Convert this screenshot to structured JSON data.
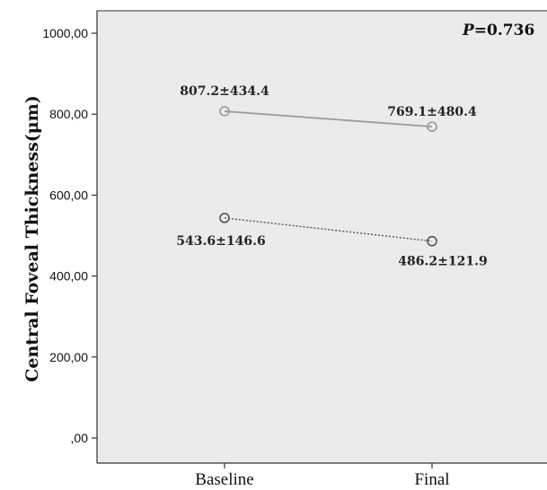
{
  "chart_data": {
    "type": "line",
    "title": "",
    "ylabel": "Central Foveal Thickness(μm)",
    "xlabel": "",
    "categories": [
      "Baseline",
      "Final"
    ],
    "ylim": [
      0,
      1000
    ],
    "yticks": [
      0,
      200,
      400,
      600,
      800,
      1000
    ],
    "ytick_labels": [
      ",00",
      "200,00",
      "400,00",
      "600,00",
      "800,00",
      "1000,00"
    ],
    "grid": false,
    "series": [
      {
        "values": [
          807.2,
          769.1
        ],
        "labels": [
          "807.2±434.4",
          "769.1±480.4"
        ],
        "line_style": "solid",
        "color": "#9a9a9a"
      },
      {
        "values": [
          543.6,
          486.2
        ],
        "labels": [
          "543.6±146.6",
          "486.2±121.9"
        ],
        "line_style": "dotted",
        "color": "#555555"
      }
    ],
    "annotation": {
      "italic": "P",
      "text": "=0.736"
    },
    "plot_background": "#ebebeb"
  }
}
